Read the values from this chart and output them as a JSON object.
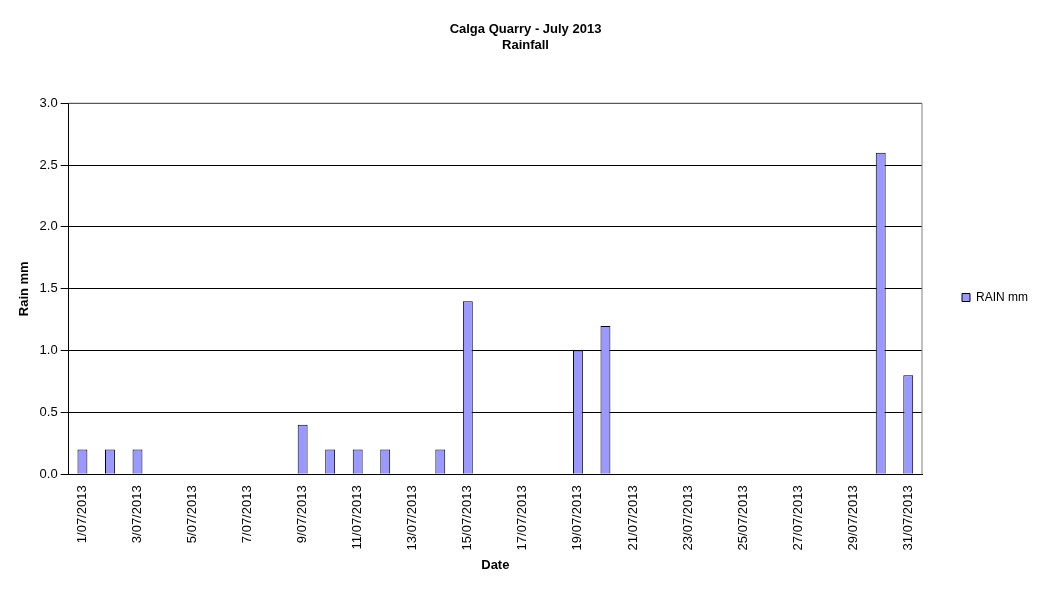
{
  "chart_data": {
    "type": "bar",
    "title": "Calga Quarry - July 2013",
    "subtitle": "Rainfall",
    "xlabel": "Date",
    "ylabel": "Rain mm",
    "categories": [
      "1/07/2013",
      null,
      "3/07/2013",
      null,
      "5/07/2013",
      null,
      "7/07/2013",
      null,
      "9/07/2013",
      null,
      "11/07/2013",
      null,
      "13/07/2013",
      null,
      "15/07/2013",
      null,
      "17/07/2013",
      null,
      "19/07/2013",
      null,
      "21/07/2013",
      null,
      "23/07/2013",
      null,
      "25/07/2013",
      null,
      "27/07/2013",
      null,
      "29/07/2013",
      null,
      "31/07/2013"
    ],
    "series": [
      {
        "name": "RAIN mm",
        "color": "#9999ff",
        "values": [
          0.2,
          0.2,
          0.2,
          0,
          0,
          0,
          0,
          0,
          0.4,
          0.2,
          0.2,
          0.2,
          0,
          0.2,
          1.4,
          0,
          0,
          0,
          1.0,
          1.2,
          0,
          0,
          0,
          0,
          0,
          0,
          0,
          0,
          0,
          2.6,
          0.8
        ]
      }
    ],
    "ylim": [
      0,
      3
    ],
    "yticks": [
      {
        "value": 0,
        "label": "0.0"
      },
      0.5,
      {
        "value": 1,
        "label": "1.0"
      },
      1.5,
      {
        "value": 2,
        "label": "2.0"
      },
      2.5,
      {
        "value": 3,
        "label": "3.0"
      }
    ],
    "grid": "y",
    "legend": "right"
  }
}
